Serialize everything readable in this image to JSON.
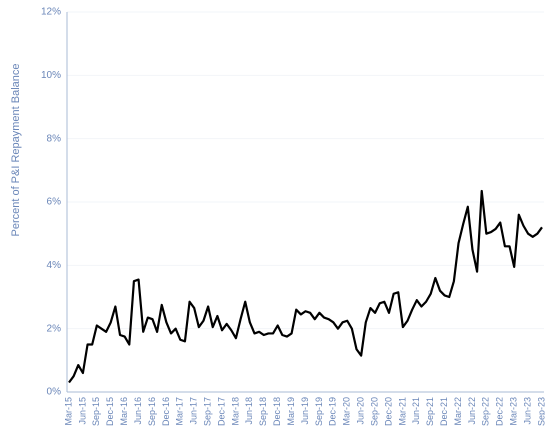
{
  "chart_data": {
    "type": "line",
    "y_label": "Percent of P&I Repayment  Balance",
    "categories": [
      "Mar-15",
      null,
      null,
      "Jun-15",
      null,
      null,
      "Sep-15",
      null,
      null,
      "Dec-15",
      null,
      null,
      "Mar-16",
      null,
      null,
      "Jun-16",
      null,
      null,
      "Sep-16",
      null,
      null,
      "Dec-16",
      null,
      null,
      "Mar-17",
      null,
      null,
      "Jun-17",
      null,
      null,
      "Sep-17",
      null,
      null,
      "Dec-17",
      null,
      null,
      "Mar-18",
      null,
      null,
      "Jun-18",
      null,
      null,
      "Sep-18",
      null,
      null,
      "Dec-18",
      null,
      null,
      "Mar-19",
      null,
      null,
      "Jun-19",
      null,
      null,
      "Sep-19",
      null,
      null,
      "Dec-19",
      null,
      null,
      "Mar-20",
      null,
      null,
      "Jun-20",
      null,
      null,
      "Sep-20",
      null,
      null,
      "Dec-20",
      null,
      null,
      "Mar-21",
      null,
      null,
      "Jun-21",
      null,
      null,
      "Sep-21",
      null,
      null,
      "Dec-21",
      null,
      null,
      "Mar-22",
      null,
      null,
      "Jun-22",
      null,
      null,
      "Sep-22",
      null,
      null,
      "Dec-22",
      null,
      null,
      "Mar-23",
      null,
      null,
      "Jun-23",
      null,
      null,
      "Sep-23"
    ],
    "values": [
      0.3,
      0.5,
      0.85,
      0.6,
      1.5,
      1.5,
      2.1,
      2.0,
      1.9,
      2.2,
      2.7,
      1.8,
      1.75,
      1.5,
      3.5,
      3.55,
      1.9,
      2.35,
      2.3,
      1.9,
      2.75,
      2.2,
      1.85,
      2.0,
      1.65,
      1.6,
      2.85,
      2.65,
      2.05,
      2.25,
      2.7,
      2.05,
      2.4,
      1.95,
      2.15,
      1.95,
      1.7,
      2.3,
      2.85,
      2.2,
      1.85,
      1.9,
      1.8,
      1.85,
      1.85,
      2.1,
      1.8,
      1.75,
      1.85,
      2.6,
      2.45,
      2.55,
      2.5,
      2.3,
      2.5,
      2.35,
      2.3,
      2.2,
      2.0,
      2.2,
      2.25,
      2.0,
      1.35,
      1.15,
      2.2,
      2.65,
      2.5,
      2.8,
      2.85,
      2.5,
      3.1,
      3.15,
      2.05,
      2.25,
      2.6,
      2.9,
      2.7,
      2.85,
      3.1,
      3.6,
      3.2,
      3.05,
      3.0,
      3.5,
      4.7,
      5.3,
      5.85,
      4.5,
      3.8,
      6.35,
      5.0,
      5.05,
      5.15,
      5.35,
      4.6,
      4.6,
      3.95,
      5.6,
      5.25,
      5.0,
      4.9,
      5.0,
      5.2
    ],
    "color": "#000000",
    "ylim": [
      0,
      12
    ],
    "yticks": [
      {
        "value": 0,
        "label": "0%"
      },
      {
        "value": 2,
        "label": "2%"
      },
      {
        "value": 4,
        "label": "4%"
      },
      {
        "value": 6,
        "label": "6%"
      },
      {
        "value": 8,
        "label": "8%"
      },
      {
        "value": 10,
        "label": "10%"
      },
      {
        "value": 12,
        "label": "12%"
      }
    ],
    "grid": true
  }
}
